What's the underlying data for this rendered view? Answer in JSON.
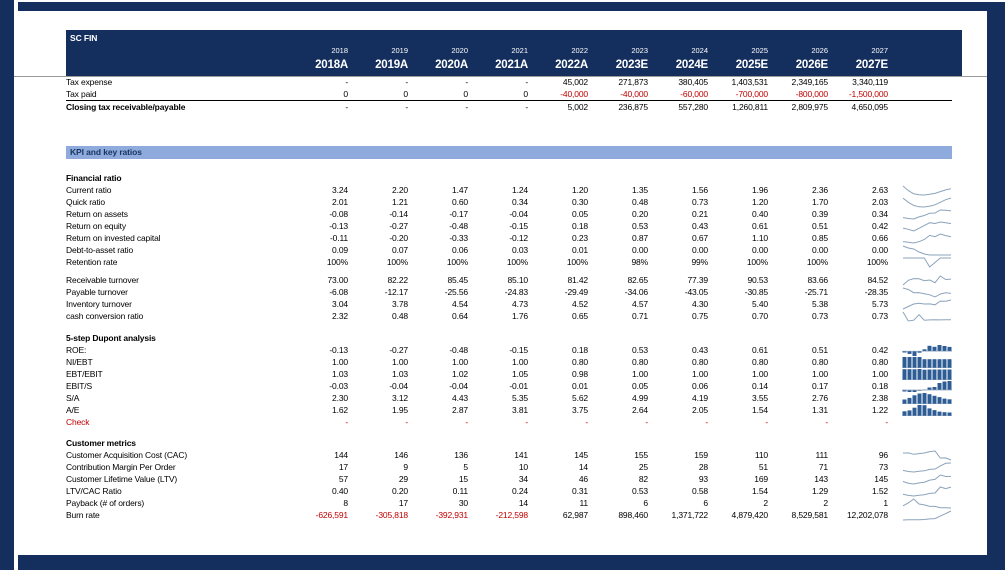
{
  "app": {
    "title": "SC FIN"
  },
  "colors": {
    "navy": "#142F5E",
    "band_blue": "#8FAADC",
    "red": "#C00000",
    "spark_line": "#8CA3BC",
    "spark_bar": "#2E5C94"
  },
  "header": {
    "title": "SC FIN",
    "years": [
      "2018",
      "2019",
      "2020",
      "2021",
      "2022",
      "2023",
      "2024",
      "2025",
      "2026",
      "2027"
    ],
    "year_labels": [
      "2018A",
      "2019A",
      "2020A",
      "2021A",
      "2022A",
      "2023E",
      "2024E",
      "2025E",
      "2026E",
      "2027E"
    ]
  },
  "tax_table": {
    "rows": [
      {
        "label": "Tax expense",
        "values": [
          "-",
          "-",
          "-",
          "-",
          "45,002",
          "271,873",
          "380,405",
          "1,403,531",
          "2,349,165",
          "3,340,119"
        ]
      },
      {
        "label": "Tax paid",
        "neg_red": true,
        "rule_below": true,
        "values": [
          "0",
          "0",
          "0",
          "0",
          "-40,000",
          "-40,000",
          "-60,000",
          "-700,000",
          "-800,000",
          "-1,500,000"
        ]
      },
      {
        "label": "Closing tax receivable/payable",
        "bold": true,
        "values": [
          "-",
          "-",
          "-",
          "-",
          "5,002",
          "236,875",
          "557,280",
          "1,260,811",
          "2,809,975",
          "4,650,095"
        ]
      }
    ]
  },
  "kpi_band": {
    "title": "KPI and key ratios"
  },
  "sections": [
    {
      "id": "financial-ratio",
      "heading": "Financial ratio",
      "spark": "line",
      "rows": [
        {
          "label": "Current ratio",
          "values": [
            "3.24",
            "2.20",
            "1.47",
            "1.24",
            "1.20",
            "1.35",
            "1.56",
            "1.96",
            "2.36",
            "2.63"
          ]
        },
        {
          "label": "Quick ratio",
          "values": [
            "2.01",
            "1.21",
            "0.60",
            "0.34",
            "0.30",
            "0.48",
            "0.73",
            "1.20",
            "1.70",
            "2.03"
          ]
        },
        {
          "label": "Return on assets",
          "values": [
            "-0.08",
            "-0.14",
            "-0.17",
            "-0.04",
            "0.05",
            "0.20",
            "0.21",
            "0.40",
            "0.39",
            "0.34"
          ]
        },
        {
          "label": "Return on equity",
          "values": [
            "-0.13",
            "-0.27",
            "-0.48",
            "-0.15",
            "0.18",
            "0.53",
            "0.43",
            "0.61",
            "0.51",
            "0.42"
          ]
        },
        {
          "label": "Return on invested capital",
          "values": [
            "-0.11",
            "-0.20",
            "-0.33",
            "-0.12",
            "0.23",
            "0.87",
            "0.67",
            "1.10",
            "0.85",
            "0.66"
          ]
        },
        {
          "label": "Debt-to-asset ratio",
          "values": [
            "0.09",
            "0.07",
            "0.06",
            "0.03",
            "0.01",
            "0.00",
            "0.00",
            "0.00",
            "0.00",
            "0.00"
          ]
        },
        {
          "label": "Retention rate",
          "values": [
            "100%",
            "100%",
            "100%",
            "100%",
            "100%",
            "98%",
            "99%",
            "100%",
            "100%",
            "100%"
          ]
        }
      ]
    },
    {
      "id": "turnover",
      "heading": "",
      "spark": "line",
      "rows": [
        {
          "label": "Receivable turnover",
          "values": [
            "73.00",
            "82.22",
            "85.45",
            "85.10",
            "81.42",
            "82.65",
            "77.39",
            "90.53",
            "83.66",
            "84.52"
          ]
        },
        {
          "label": "Payable turnover",
          "values": [
            "-6.08",
            "-12.17",
            "-25.56",
            "-24.83",
            "-29.49",
            "-34.06",
            "-43.05",
            "-30.85",
            "-25.71",
            "-28.35"
          ]
        },
        {
          "label": "Inventory turnover",
          "values": [
            "3.04",
            "3.78",
            "4.54",
            "4.73",
            "4.52",
            "4.57",
            "4.30",
            "5.40",
            "5.38",
            "5.73"
          ]
        },
        {
          "label": "cash conversion ratio",
          "values": [
            "2.32",
            "0.48",
            "0.64",
            "1.76",
            "0.65",
            "0.71",
            "0.75",
            "0.70",
            "0.73",
            "0.73"
          ]
        }
      ]
    },
    {
      "id": "dupont",
      "heading": "5-step Dupont analysis",
      "spark": "bar",
      "rows": [
        {
          "label": "ROE:",
          "values": [
            "-0.13",
            "-0.27",
            "-0.48",
            "-0.15",
            "0.18",
            "0.53",
            "0.43",
            "0.61",
            "0.51",
            "0.42"
          ]
        },
        {
          "label": "NI/EBT",
          "values": [
            "1.00",
            "1.00",
            "1.00",
            "1.00",
            "0.80",
            "0.80",
            "0.80",
            "0.80",
            "0.80",
            "0.80"
          ]
        },
        {
          "label": "EBT/EBIT",
          "values": [
            "1.03",
            "1.03",
            "1.02",
            "1.05",
            "0.98",
            "1.00",
            "1.00",
            "1.00",
            "1.00",
            "1.00"
          ]
        },
        {
          "label": "EBIT/S",
          "values": [
            "-0.03",
            "-0.04",
            "-0.04",
            "-0.01",
            "0.01",
            "0.05",
            "0.06",
            "0.14",
            "0.17",
            "0.18"
          ]
        },
        {
          "label": "S/A",
          "values": [
            "2.30",
            "3.12",
            "4.43",
            "5.35",
            "5.62",
            "4.99",
            "4.19",
            "3.55",
            "2.76",
            "2.38"
          ]
        },
        {
          "label": "A/E",
          "values": [
            "1.62",
            "1.95",
            "2.87",
            "3.81",
            "3.75",
            "2.64",
            "2.05",
            "1.54",
            "1.31",
            "1.22"
          ]
        },
        {
          "label": "Check",
          "red": true,
          "no_spark": true,
          "values": [
            "-",
            "-",
            "-",
            "-",
            "-",
            "-",
            "-",
            "-",
            "-",
            "-"
          ]
        }
      ]
    },
    {
      "id": "customer-metrics",
      "heading": "Customer metrics",
      "spark": "line",
      "rows": [
        {
          "label": "Customer Acquisition Cost (CAC)",
          "values": [
            "144",
            "146",
            "136",
            "141",
            "145",
            "155",
            "159",
            "110",
            "111",
            "96"
          ]
        },
        {
          "label": "Contribution Margin Per Order",
          "values": [
            "17",
            "9",
            "5",
            "10",
            "14",
            "25",
            "28",
            "51",
            "71",
            "73"
          ]
        },
        {
          "label": "Customer Lifetime Value (LTV)",
          "values": [
            "57",
            "29",
            "15",
            "34",
            "46",
            "82",
            "93",
            "169",
            "143",
            "145"
          ]
        },
        {
          "label": "LTV/CAC Ratio",
          "values": [
            "0.40",
            "0.20",
            "0.11",
            "0.24",
            "0.31",
            "0.53",
            "0.58",
            "1.54",
            "1.29",
            "1.52"
          ]
        },
        {
          "label": "Payback (# of orders)",
          "values": [
            "8",
            "17",
            "30",
            "14",
            "11",
            "6",
            "6",
            "2",
            "2",
            "1"
          ]
        },
        {
          "label": "Burn rate",
          "neg_red": true,
          "values": [
            "-626,591",
            "-305,818",
            "-392,931",
            "-212,598",
            "62,987",
            "898,460",
            "1,371,722",
            "4,879,420",
            "8,529,581",
            "12,202,078"
          ]
        }
      ]
    }
  ]
}
